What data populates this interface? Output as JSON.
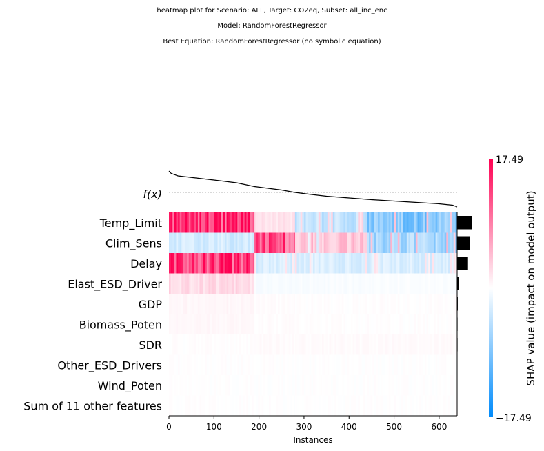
{
  "header": {
    "title_line1": "heatmap plot for Scenario: ALL, Target: CO2eq, Subset: all_inc_enc",
    "title_line2": "Model: RandomForestRegressor",
    "title_line3": "Best Equation: RandomForestRegressor (no symbolic equation)"
  },
  "chart_data": {
    "type": "heatmap",
    "xlabel": "Instances",
    "fx_label": "f(x)",
    "xlim": [
      0,
      640
    ],
    "x_ticks": [
      "0",
      "100",
      "200",
      "300",
      "400",
      "500",
      "600"
    ],
    "n_instances": 640,
    "features": [
      "Temp_Limit",
      "Clim_Sens",
      "Delay",
      "Elast_ESD_Driver",
      "GDP",
      "Biomass_Poten",
      "SDR",
      "Other_ESD_Drivers",
      "Wind_Poten",
      "Sum of 11 other features"
    ],
    "mean_abs_shap": [
      6.8,
      6.1,
      5.1,
      0.9,
      0.3,
      0.2,
      0.2,
      0.05,
      0.03,
      0.05
    ],
    "colorbar": {
      "label": "SHAP value (impact on model output)",
      "max_label": "17.49",
      "min_label": "−17.49",
      "vmin": -17.49,
      "vmax": 17.49,
      "color_low": "#008bfb",
      "color_mid": "#ffffff",
      "color_high": "#ff0052"
    },
    "segments": [
      {
        "x_range": [
          0,
          190
        ],
        "shap": [
          14,
          -3,
          14,
          2.5,
          0.6,
          0.5,
          0.1,
          0.05,
          0.03,
          0.05
        ]
      },
      {
        "x_range": [
          190,
          280
        ],
        "shap": [
          2,
          12,
          -2.5,
          -0.5,
          0.2,
          0.2,
          0.3,
          0.03,
          0.02,
          0.04
        ]
      },
      {
        "x_range": [
          280,
          440
        ],
        "shap": [
          -4,
          4,
          -2.5,
          -0.4,
          0.1,
          0.1,
          0.3,
          0.03,
          0.02,
          0.04
        ]
      },
      {
        "x_range": [
          440,
          640
        ],
        "shap": [
          -8,
          -6,
          -2.5,
          -0.3,
          0.1,
          0.1,
          0.3,
          0.03,
          0.02,
          0.04
        ]
      }
    ],
    "fx_curve": {
      "x": [
        0,
        5,
        20,
        60,
        100,
        150,
        190,
        220,
        250,
        280,
        310,
        350,
        400,
        450,
        500,
        550,
        600,
        630,
        640
      ],
      "y": [
        1.0,
        0.93,
        0.86,
        0.8,
        0.74,
        0.66,
        0.55,
        0.5,
        0.45,
        0.38,
        0.33,
        0.27,
        0.22,
        0.17,
        0.13,
        0.09,
        0.05,
        0.01,
        -0.04
      ]
    }
  }
}
